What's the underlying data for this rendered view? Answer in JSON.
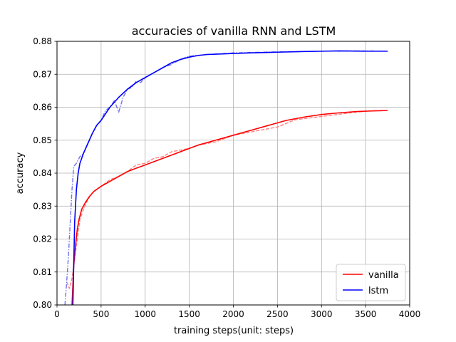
{
  "chart_data": {
    "type": "line",
    "title": "accuracies of vanilla RNN and LSTM",
    "xlabel": "training steps(unit: steps)",
    "ylabel": "accuracy",
    "xlim": [
      0,
      4000
    ],
    "ylim": [
      0.8,
      0.88
    ],
    "x_ticks": [
      "0",
      "500",
      "1000",
      "1500",
      "2000",
      "2500",
      "3000",
      "3500",
      "4000"
    ],
    "y_ticks": [
      "0.80",
      "0.81",
      "0.82",
      "0.83",
      "0.84",
      "0.85",
      "0.86",
      "0.87",
      "0.88"
    ],
    "grid": true,
    "legend_position": "bottom-right",
    "series": [
      {
        "name": "vanilla",
        "color": "#ff0000",
        "style": "solid",
        "x": [
          170,
          190,
          210,
          230,
          250,
          280,
          320,
          370,
          420,
          500,
          600,
          700,
          800,
          900,
          1000,
          1200,
          1400,
          1600,
          1800,
          2000,
          2200,
          2400,
          2600,
          2800,
          3000,
          3200,
          3400,
          3600,
          3750
        ],
        "y": [
          0.8,
          0.812,
          0.818,
          0.823,
          0.826,
          0.829,
          0.831,
          0.833,
          0.8345,
          0.836,
          0.8375,
          0.839,
          0.8405,
          0.8415,
          0.8425,
          0.8445,
          0.8465,
          0.8485,
          0.85,
          0.8515,
          0.853,
          0.8545,
          0.856,
          0.857,
          0.8578,
          0.8583,
          0.8587,
          0.8589,
          0.859
        ]
      },
      {
        "name": "lstm",
        "color": "#0000ff",
        "style": "solid",
        "x": [
          180,
          200,
          220,
          240,
          260,
          300,
          350,
          400,
          450,
          500,
          600,
          700,
          800,
          900,
          1000,
          1100,
          1200,
          1300,
          1400,
          1500,
          1600,
          1700,
          1800,
          2000,
          2200,
          2500,
          2800,
          3000,
          3200,
          3500,
          3750
        ],
        "y": [
          0.8,
          0.825,
          0.835,
          0.84,
          0.843,
          0.846,
          0.849,
          0.852,
          0.8545,
          0.856,
          0.86,
          0.863,
          0.8655,
          0.8675,
          0.869,
          0.8705,
          0.872,
          0.8735,
          0.8745,
          0.8752,
          0.8757,
          0.876,
          0.8761,
          0.8763,
          0.8765,
          0.8767,
          0.8769,
          0.877,
          0.8771,
          0.877,
          0.877
        ]
      },
      {
        "name": "",
        "color": "#ff8080",
        "style": "dashed",
        "x": [
          110,
          140,
          170,
          200,
          230,
          260,
          300,
          350,
          400,
          500,
          600,
          700,
          800,
          900,
          1000,
          1100,
          1200,
          1300,
          1400,
          1500,
          1600,
          1700,
          1800,
          2000,
          2200,
          2500,
          2700,
          3000,
          3300,
          3500,
          3750
        ],
        "y": [
          0.807,
          0.805,
          0.808,
          0.814,
          0.82,
          0.826,
          0.829,
          0.832,
          0.834,
          0.836,
          0.838,
          0.839,
          0.8405,
          0.8425,
          0.843,
          0.8445,
          0.845,
          0.8465,
          0.847,
          0.8475,
          0.8485,
          0.849,
          0.8495,
          0.8515,
          0.8525,
          0.854,
          0.8562,
          0.8572,
          0.8582,
          0.8588,
          0.859
        ]
      },
      {
        "name": "",
        "color": "#7070ee",
        "style": "dashdot",
        "x": [
          90,
          110,
          130,
          150,
          170,
          190,
          220,
          260,
          300,
          350,
          400,
          450,
          500,
          550,
          600,
          650,
          700,
          750,
          800,
          850,
          900,
          950,
          1000,
          1100,
          1200,
          1300,
          1400,
          1500,
          1700,
          2000,
          2500,
          3000,
          3500,
          3750
        ],
        "y": [
          0.8,
          0.807,
          0.815,
          0.825,
          0.835,
          0.842,
          0.843,
          0.845,
          0.846,
          0.849,
          0.852,
          0.8545,
          0.856,
          0.859,
          0.86,
          0.862,
          0.8585,
          0.863,
          0.8655,
          0.866,
          0.868,
          0.8675,
          0.869,
          0.8705,
          0.872,
          0.873,
          0.8745,
          0.8755,
          0.876,
          0.8765,
          0.8768,
          0.877,
          0.8771,
          0.877
        ]
      }
    ]
  }
}
